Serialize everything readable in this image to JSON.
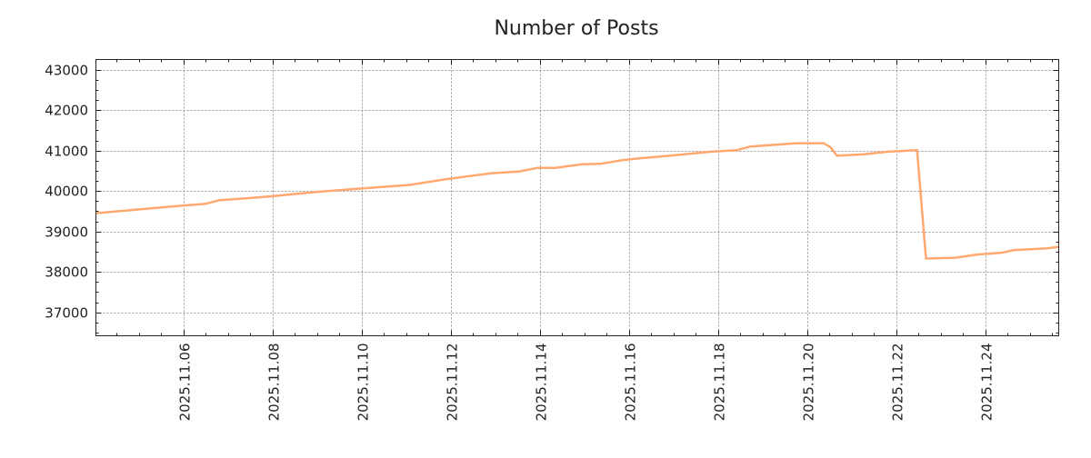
{
  "chart_data": {
    "type": "line",
    "title": "Number of Posts",
    "xlabel": "",
    "ylabel": "",
    "x_unit": "days since 2025.11.04",
    "xlim": [
      0.04,
      21.65
    ],
    "ylim": [
      36420,
      43250
    ],
    "grid": true,
    "line_color": "#FFA870",
    "x_ticks": [
      {
        "x": 2,
        "label": "2025.11.06"
      },
      {
        "x": 4,
        "label": "2025.11.08"
      },
      {
        "x": 6,
        "label": "2025.11.10"
      },
      {
        "x": 8,
        "label": "2025.11.12"
      },
      {
        "x": 10,
        "label": "2025.11.14"
      },
      {
        "x": 12,
        "label": "2025.11.16"
      },
      {
        "x": 14,
        "label": "2025.11.18"
      },
      {
        "x": 16,
        "label": "2025.11.20"
      },
      {
        "x": 18,
        "label": "2025.11.22"
      },
      {
        "x": 20,
        "label": "2025.11.24"
      }
    ],
    "y_ticks": [
      {
        "y": 37000,
        "label": "37000"
      },
      {
        "y": 38000,
        "label": "38000"
      },
      {
        "y": 39000,
        "label": "39000"
      },
      {
        "y": 40000,
        "label": "40000"
      },
      {
        "y": 41000,
        "label": "41000"
      },
      {
        "y": 42000,
        "label": "42000"
      },
      {
        "y": 43000,
        "label": "43000"
      }
    ],
    "series": [
      {
        "name": "Number of Posts",
        "points": [
          [
            0.04,
            39450
          ],
          [
            0.96,
            39540
          ],
          [
            1.98,
            39640
          ],
          [
            2.49,
            39680
          ],
          [
            2.8,
            39770
          ],
          [
            3.41,
            39820
          ],
          [
            4.0,
            39870
          ],
          [
            5.04,
            39980
          ],
          [
            5.98,
            40060
          ],
          [
            7.08,
            40150
          ],
          [
            7.9,
            40290
          ],
          [
            8.92,
            40440
          ],
          [
            9.53,
            40480
          ],
          [
            9.94,
            40570
          ],
          [
            10.35,
            40570
          ],
          [
            10.96,
            40660
          ],
          [
            11.37,
            40670
          ],
          [
            11.78,
            40750
          ],
          [
            12.18,
            40800
          ],
          [
            13.0,
            40880
          ],
          [
            13.82,
            40970
          ],
          [
            14.43,
            41010
          ],
          [
            14.73,
            41100
          ],
          [
            15.76,
            41180
          ],
          [
            16.37,
            41180
          ],
          [
            16.53,
            41080
          ],
          [
            16.67,
            40870
          ],
          [
            17.29,
            40910
          ],
          [
            17.8,
            40970
          ],
          [
            18.47,
            41010
          ],
          [
            18.67,
            38330
          ],
          [
            19.33,
            38350
          ],
          [
            19.84,
            38430
          ],
          [
            20.35,
            38470
          ],
          [
            20.65,
            38540
          ],
          [
            21.37,
            38580
          ],
          [
            21.65,
            38620
          ]
        ]
      }
    ]
  }
}
